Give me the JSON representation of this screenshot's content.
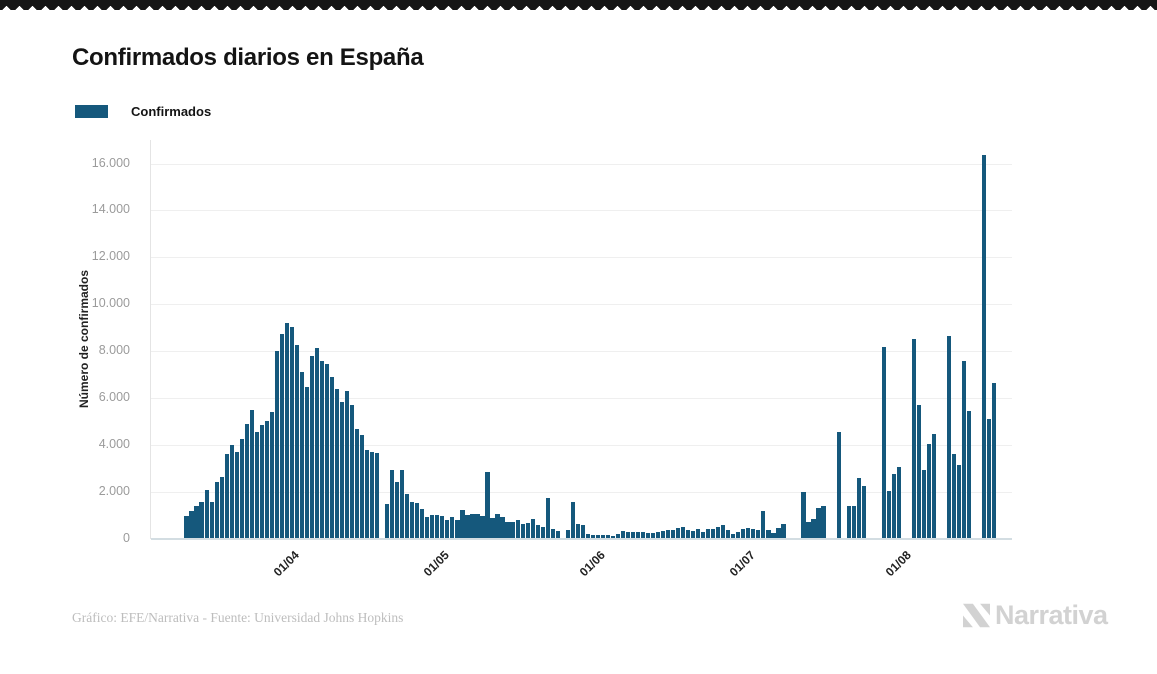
{
  "page": {
    "title": "Confirmados diarios en España"
  },
  "legend": {
    "label": "Confirmados",
    "swatch_color": "#15587c"
  },
  "footer": {
    "credit": "Gráfico: EFE/Narrativa - Fuente: Universidad Johns Hopkins",
    "logo_text": "Narrativa"
  },
  "chart_data": {
    "type": "bar",
    "title": "Confirmados diarios en España",
    "series_name": "Confirmados",
    "xlabel": "",
    "ylabel": "Número de confirmados",
    "bar_color": "#15587c",
    "grid": true,
    "legend_position": "top-left",
    "ylim": [
      0,
      17000
    ],
    "yticks": [
      0,
      2000,
      4000,
      6000,
      8000,
      10000,
      12000,
      14000,
      16000
    ],
    "ytick_labels": [
      "0",
      "2.000",
      "4.000",
      "6.000",
      "8.000",
      "10.000",
      "12.000",
      "14.000",
      "16.000"
    ],
    "x_tick_labels": [
      "01/04",
      "01/05",
      "01/06",
      "01/07",
      "01/08"
    ],
    "x_tick_day_index": [
      20,
      50,
      81,
      111,
      142
    ],
    "values": [
      1000,
      1180,
      1400,
      1580,
      2070,
      1570,
      2430,
      2640,
      3630,
      3990,
      3700,
      4270,
      4900,
      5480,
      4550,
      4840,
      5050,
      5400,
      8030,
      8740,
      9190,
      9020,
      8270,
      7100,
      6470,
      7820,
      8160,
      7590,
      7450,
      6900,
      6400,
      5840,
      6300,
      5720,
      4700,
      4430,
      3800,
      3710,
      3650,
      0,
      1475,
      2950,
      2450,
      2950,
      1900,
      1575,
      1530,
      1290,
      935,
      1035,
      1010,
      980,
      795,
      935,
      825,
      1220,
      1010,
      1080,
      1050,
      980,
      2850,
      895,
      1080,
      935,
      725,
      725,
      795,
      650,
      700,
      835,
      600,
      510,
      1760,
      440,
      330,
      0,
      370,
      1575,
      650,
      610,
      225,
      155,
      185,
      160,
      170,
      150,
      200,
      330,
      300,
      310,
      290,
      300,
      270,
      250,
      280,
      350,
      400,
      380,
      450,
      510,
      400,
      350,
      440,
      300,
      410,
      440,
      510,
      580,
      370,
      225,
      300,
      410,
      470,
      440,
      400,
      1180,
      370,
      255,
      470,
      650,
      0,
      0,
      0,
      2000,
      720,
      865,
      1320,
      1400,
      0,
      0,
      4550,
      0,
      1390,
      1390,
      2595,
      2250,
      0,
      0,
      0,
      8200,
      2030,
      2780,
      3060,
      0,
      0,
      8525,
      5730,
      2960,
      4055,
      4480,
      0,
      0,
      8640,
      3630,
      3175,
      7575,
      5475,
      0,
      0,
      16355,
      5120,
      6650
    ]
  }
}
